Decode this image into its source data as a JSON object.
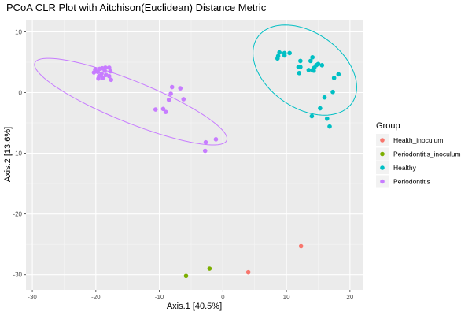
{
  "chart_data": {
    "type": "scatter",
    "title": "PCoA CLR Plot with Aitchison(Euclidean) Distance Metric",
    "xlabel": "Axis.1   [40.5%]",
    "ylabel": "Axis.2   [13.6%]",
    "xlim": [
      -31,
      22
    ],
    "ylim": [
      -32.5,
      12
    ],
    "xticks": [
      -30,
      -20,
      -10,
      0,
      10,
      20
    ],
    "yticks": [
      10,
      0,
      -10,
      -20,
      -30
    ],
    "grid": true,
    "legend": {
      "title": "Group",
      "placement": "right"
    },
    "series": [
      {
        "name": "Health_inoculum",
        "color": "#F8766D",
        "points": [
          [
            12.3,
            -25.3
          ],
          [
            4.0,
            -29.6
          ]
        ]
      },
      {
        "name": "Periodontitis_inoculum",
        "color": "#7CAE00",
        "points": [
          [
            -5.8,
            -30.2
          ],
          [
            -2.1,
            -29.0
          ]
        ]
      },
      {
        "name": "Healthy",
        "color": "#00BFC4",
        "points": [
          [
            8.7,
            6.0
          ],
          [
            8.9,
            6.6
          ],
          [
            8.6,
            5.6
          ],
          [
            9.7,
            6.5
          ],
          [
            9.7,
            6.1
          ],
          [
            10.5,
            6.5
          ],
          [
            12.2,
            5.2
          ],
          [
            11.9,
            4.2
          ],
          [
            12.2,
            4.2
          ],
          [
            12.0,
            3.2
          ],
          [
            13.8,
            5.2
          ],
          [
            14.1,
            5.8
          ],
          [
            14.3,
            4.0
          ],
          [
            14.1,
            3.7
          ],
          [
            14.7,
            4.5
          ],
          [
            14.4,
            4.1
          ],
          [
            13.5,
            3.7
          ],
          [
            15.0,
            4.7
          ],
          [
            14.3,
            3.6
          ],
          [
            17.5,
            2.4
          ],
          [
            18.2,
            3.0
          ],
          [
            16.0,
            -0.8
          ],
          [
            15.3,
            -2.6
          ],
          [
            17.3,
            0.1
          ],
          [
            14.0,
            -3.9
          ],
          [
            16.4,
            -4.3
          ],
          [
            16.8,
            -5.6
          ],
          [
            15.6,
            4.5
          ]
        ],
        "ellipse": {
          "cx": 12.9,
          "cy": 3.7,
          "rx": 9.2,
          "ry": 6.1,
          "angle_deg": -38
        }
      },
      {
        "name": "Periodontitis",
        "color": "#C77CFF",
        "points": [
          [
            -20.1,
            3.8
          ],
          [
            -19.7,
            3.4
          ],
          [
            -19.4,
            3.9
          ],
          [
            -19.1,
            3.1
          ],
          [
            -18.6,
            3.6
          ],
          [
            -18.4,
            2.9
          ],
          [
            -18.9,
            2.4
          ],
          [
            -19.5,
            2.7
          ],
          [
            -17.9,
            2.7
          ],
          [
            -17.7,
            3.5
          ],
          [
            -17.6,
            2.1
          ],
          [
            -17.9,
            4.1
          ],
          [
            -19.6,
            2.3
          ],
          [
            -20.3,
            3.3
          ],
          [
            -19.0,
            4.0
          ],
          [
            -18.5,
            4.1
          ],
          [
            -8.0,
            0.9
          ],
          [
            -6.7,
            0.7
          ],
          [
            -8.2,
            -0.2
          ],
          [
            -8.5,
            -1.2
          ],
          [
            -6.2,
            -1.1
          ],
          [
            -10.6,
            -2.8
          ],
          [
            -9.4,
            -2.7
          ],
          [
            -9.0,
            -3.2
          ],
          [
            -2.7,
            -8.2
          ],
          [
            -1.1,
            -7.7
          ],
          [
            -2.8,
            -9.6
          ]
        ],
        "ellipse": {
          "cx": -14.5,
          "cy": -1.5,
          "rx": 16.4,
          "ry": 3.4,
          "angle_deg": -23
        }
      }
    ]
  }
}
